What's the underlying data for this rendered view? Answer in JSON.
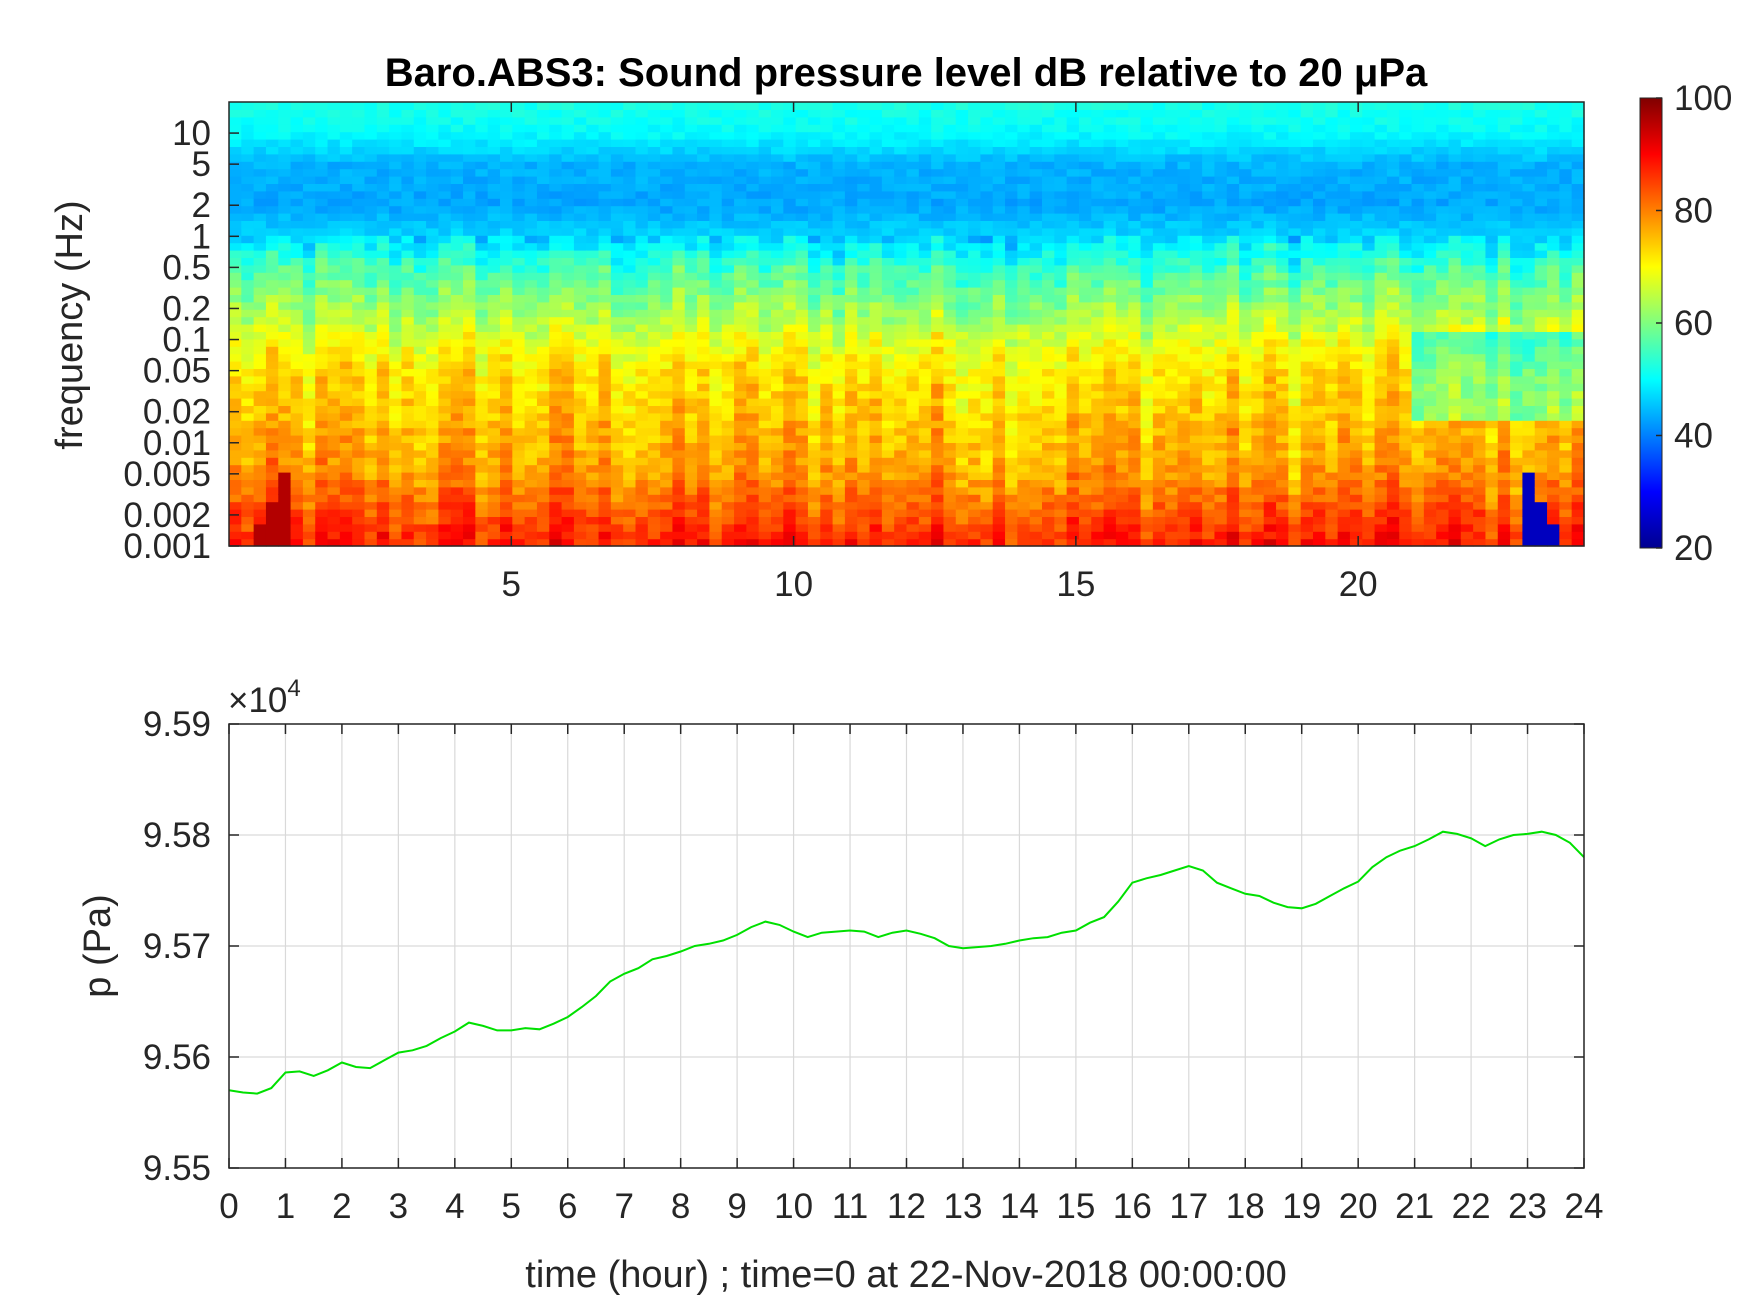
{
  "chart_data": [
    {
      "type": "heatmap",
      "title": "Baro.ABS3: Sound pressure level dB relative to 20 μPa",
      "xlabel": "",
      "ylabel": "frequency (Hz)",
      "xlim": [
        0,
        24
      ],
      "x_ticks": [
        "5",
        "10",
        "15",
        "20"
      ],
      "x_tick_values": [
        5,
        10,
        15,
        20
      ],
      "ylim": [
        0.001,
        20
      ],
      "yscale": "log",
      "y_ticks": [
        "0.001",
        "0.002",
        "0.005",
        "0.01",
        "0.02",
        "0.05",
        "0.1",
        "0.2",
        "0.5",
        "1",
        "2",
        "5",
        "10"
      ],
      "y_tick_values": [
        0.001,
        0.002,
        0.005,
        0.01,
        0.02,
        0.05,
        0.1,
        0.2,
        0.5,
        1,
        2,
        5,
        10
      ],
      "colormap": "jet",
      "colorbar": {
        "range": [
          20,
          100
        ],
        "ticks": [
          "20",
          "40",
          "60",
          "80",
          "100"
        ],
        "tick_values": [
          20,
          40,
          60,
          80,
          100
        ],
        "placement": "right"
      },
      "level_profile_db": [
        {
          "freq_hz": 0.001,
          "db": 88
        },
        {
          "freq_hz": 0.002,
          "db": 84
        },
        {
          "freq_hz": 0.005,
          "db": 78
        },
        {
          "freq_hz": 0.01,
          "db": 76
        },
        {
          "freq_hz": 0.02,
          "db": 74
        },
        {
          "freq_hz": 0.05,
          "db": 72
        },
        {
          "freq_hz": 0.1,
          "db": 68
        },
        {
          "freq_hz": 0.2,
          "db": 62
        },
        {
          "freq_hz": 0.5,
          "db": 55
        },
        {
          "freq_hz": 1,
          "db": 47
        },
        {
          "freq_hz": 2,
          "db": 43
        },
        {
          "freq_hz": 5,
          "db": 44
        },
        {
          "freq_hz": 10,
          "db": 50
        },
        {
          "freq_hz": 20,
          "db": 52
        }
      ],
      "grid": false
    },
    {
      "type": "line",
      "title": "",
      "xlabel": "time (hour) ; time=0 at 22-Nov-2018 00:00:00",
      "ylabel": "p (Pa)",
      "xlim": [
        0,
        24
      ],
      "ylim": [
        95500,
        95900
      ],
      "y_exponent_label": "×10",
      "y_exponent": "4",
      "x_ticks": [
        "0",
        "1",
        "2",
        "3",
        "4",
        "5",
        "6",
        "7",
        "8",
        "9",
        "10",
        "11",
        "12",
        "13",
        "14",
        "15",
        "16",
        "17",
        "18",
        "19",
        "20",
        "21",
        "22",
        "23",
        "24"
      ],
      "x_tick_values": [
        0,
        1,
        2,
        3,
        4,
        5,
        6,
        7,
        8,
        9,
        10,
        11,
        12,
        13,
        14,
        15,
        16,
        17,
        18,
        19,
        20,
        21,
        22,
        23,
        24
      ],
      "y_ticks": [
        "9.55",
        "9.56",
        "9.57",
        "9.58",
        "9.59"
      ],
      "y_tick_values": [
        95500,
        95600,
        95700,
        95800,
        95900
      ],
      "grid": true,
      "series": [
        {
          "name": "",
          "color": "#00e000",
          "x": [
            0,
            0.25,
            0.5,
            0.75,
            1,
            1.25,
            1.5,
            1.75,
            2,
            2.25,
            2.5,
            2.75,
            3,
            3.25,
            3.5,
            3.75,
            4,
            4.25,
            4.5,
            4.75,
            5,
            5.25,
            5.5,
            5.75,
            6,
            6.25,
            6.5,
            6.75,
            7,
            7.25,
            7.5,
            7.75,
            8,
            8.25,
            8.5,
            8.75,
            9,
            9.25,
            9.5,
            9.75,
            10,
            10.25,
            10.5,
            10.75,
            11,
            11.25,
            11.5,
            11.75,
            12,
            12.25,
            12.5,
            12.75,
            13,
            13.25,
            13.5,
            13.75,
            14,
            14.25,
            14.5,
            14.75,
            15,
            15.25,
            15.5,
            15.75,
            16,
            16.25,
            16.5,
            16.75,
            17,
            17.25,
            17.5,
            17.75,
            18,
            18.25,
            18.5,
            18.75,
            19,
            19.25,
            19.5,
            19.75,
            20,
            20.25,
            20.5,
            20.75,
            21,
            21.25,
            21.5,
            21.75,
            22,
            22.25,
            22.5,
            22.75,
            23,
            23.25,
            23.5,
            23.75,
            24
          ],
          "y": [
            95570,
            95568,
            95567,
            95572,
            95586,
            95587,
            95583,
            95588,
            95595,
            95591,
            95590,
            95597,
            95604,
            95606,
            95610,
            95617,
            95623,
            95631,
            95628,
            95624,
            95624,
            95626,
            95625,
            95630,
            95636,
            95645,
            95655,
            95668,
            95675,
            95680,
            95688,
            95691,
            95695,
            95700,
            95702,
            95705,
            95710,
            95717,
            95722,
            95719,
            95713,
            95708,
            95712,
            95713,
            95714,
            95713,
            95708,
            95712,
            95714,
            95711,
            95707,
            95700,
            95698,
            95699,
            95700,
            95702,
            95705,
            95707,
            95708,
            95712,
            95714,
            95721,
            95726,
            95740,
            95757,
            95761,
            95764,
            95768,
            95772,
            95768,
            95757,
            95752,
            95747,
            95745,
            95739,
            95735,
            95734,
            95738,
            95745,
            95752,
            95758,
            95771,
            95780,
            95786,
            95790,
            95796,
            95803,
            95801,
            95797,
            95790,
            95796,
            95800,
            95801,
            95803,
            95800,
            95793,
            95780
          ]
        }
      ]
    }
  ]
}
